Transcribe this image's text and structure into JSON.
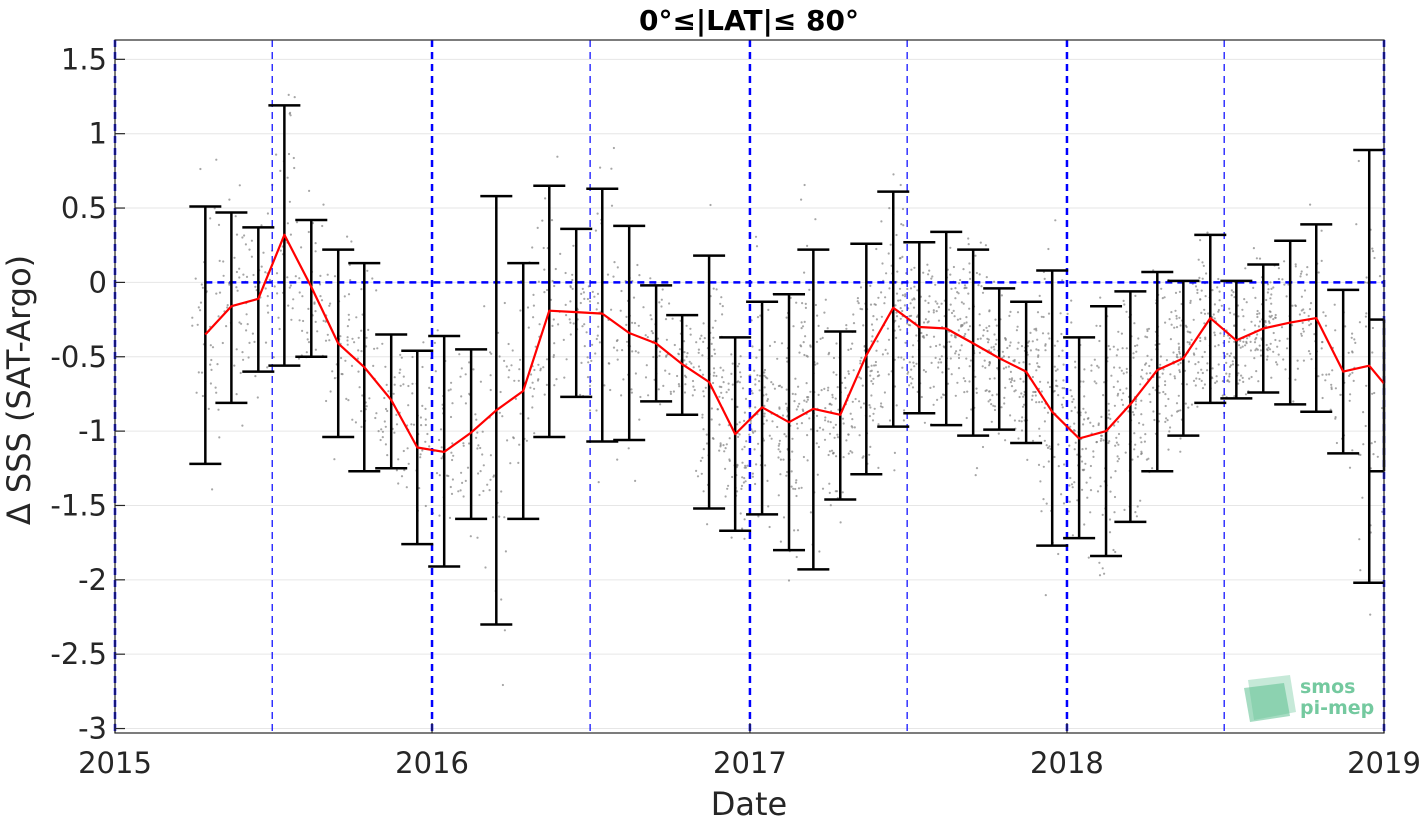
{
  "chart_data": {
    "type": "line",
    "title": "0°≤|LAT|≤ 80°",
    "xlabel": "Date",
    "ylabel": "Δ SSS (SAT-Argo)",
    "xlim": [
      "2015-01-01",
      "2019-01-01"
    ],
    "ylim": [
      -3.03,
      1.63
    ],
    "x_ticks": [
      "2015",
      "2016",
      "2017",
      "2018",
      "2019"
    ],
    "y_ticks": [
      1.5,
      1,
      0.5,
      0,
      -0.5,
      -1,
      -1.5,
      -2,
      -2.5,
      -3
    ],
    "y_tick_labels": [
      "1.5",
      "1",
      "0.5",
      "0",
      "-0.5",
      "-1",
      "-1.5",
      "-2",
      "-2.5",
      "-3"
    ],
    "grid": true,
    "reference_line_y": 0,
    "reference_line_x_range": [
      "2015-04-15",
      "2019-01-01"
    ],
    "year_lines": [
      "2015-01-01",
      "2016-01-01",
      "2017-01-01",
      "2018-01-01",
      "2019-01-01"
    ],
    "half_year_lines": [
      "2015-07-01",
      "2016-07-01",
      "2017-07-01",
      "2018-07-01"
    ],
    "series": [
      {
        "type": "line_with_errorbars",
        "x": [
          "2015-04-15",
          "2015-05-15",
          "2015-06-15",
          "2015-07-15",
          "2015-08-15",
          "2015-09-15",
          "2015-10-15",
          "2015-11-15",
          "2015-12-15",
          "2016-01-15",
          "2016-02-15",
          "2016-03-15",
          "2016-04-15",
          "2016-05-15",
          "2016-06-15",
          "2016-07-15",
          "2016-08-15",
          "2016-09-15",
          "2016-10-15",
          "2016-11-15",
          "2016-12-15",
          "2017-01-15",
          "2017-02-15",
          "2017-03-15",
          "2017-04-15",
          "2017-05-15",
          "2017-06-15",
          "2017-07-15",
          "2017-08-15",
          "2017-09-15",
          "2017-10-15",
          "2017-11-15",
          "2017-12-15",
          "2018-01-15",
          "2018-02-15",
          "2018-03-15",
          "2018-04-15",
          "2018-05-15",
          "2018-06-15",
          "2018-07-15",
          "2018-08-15",
          "2018-09-15",
          "2018-10-15",
          "2018-11-15",
          "2018-12-15"
        ],
        "y": [
          -0.35,
          -0.16,
          -0.11,
          0.32,
          -0.03,
          -0.41,
          -0.57,
          -0.79,
          -1.11,
          -1.14,
          -1.01,
          -0.86,
          -0.73,
          -0.19,
          -0.2,
          -0.21,
          -0.34,
          -0.41,
          -0.55,
          -0.67,
          -1.02,
          -0.84,
          -0.94,
          -0.85,
          -0.89,
          -0.49,
          -0.17,
          -0.3,
          -0.31,
          -0.41,
          -0.51,
          -0.6,
          -0.87,
          -1.05,
          -1.0,
          -0.82,
          -0.59,
          -0.51,
          -0.24,
          -0.39,
          -0.31,
          -0.27,
          -0.24,
          -0.6,
          -0.56
        ],
        "upper": [
          0.51,
          0.47,
          0.37,
          1.19,
          0.42,
          0.22,
          0.13,
          -0.35,
          -0.46,
          -0.36,
          -0.45,
          0.58,
          0.13,
          0.65,
          0.36,
          0.63,
          0.38,
          -0.02,
          -0.22,
          0.18,
          -0.37,
          -0.13,
          -0.08,
          0.22,
          -0.33,
          0.26,
          0.61,
          0.27,
          0.34,
          0.22,
          -0.04,
          -0.13,
          0.08,
          -0.37,
          -0.16,
          -0.06,
          0.07,
          0.01,
          0.32,
          0.01,
          0.12,
          0.28,
          0.39,
          -0.05,
          0.89
        ],
        "lower": [
          -1.22,
          -0.81,
          -0.6,
          -0.56,
          -0.5,
          -1.04,
          -1.27,
          -1.25,
          -1.76,
          -1.91,
          -1.59,
          -2.3,
          -1.59,
          -1.04,
          -0.77,
          -1.07,
          -1.06,
          -0.8,
          -0.89,
          -1.52,
          -1.67,
          -1.56,
          -1.8,
          -1.93,
          -1.46,
          -1.29,
          -0.97,
          -0.88,
          -0.96,
          -1.03,
          -0.99,
          -1.08,
          -1.77,
          -1.72,
          -1.84,
          -1.61,
          -1.27,
          -1.03,
          -0.81,
          -0.78,
          -0.74,
          -0.82,
          -0.87,
          -1.15,
          -2.02
        ]
      },
      {
        "type": "line_end",
        "x": [
          "2019-01-01"
        ],
        "y": [
          -0.68
        ],
        "upper": [
          -0.25
        ],
        "lower": [
          -1.27
        ]
      }
    ],
    "colors": {
      "mean_line": "#ff0000",
      "errorbar": "#000000",
      "reference_lines": "#0000ff",
      "scatter": "#808080",
      "grid": "#e6e6e6"
    }
  },
  "logo": {
    "line1": "smos",
    "line2": "pi-mep"
  }
}
